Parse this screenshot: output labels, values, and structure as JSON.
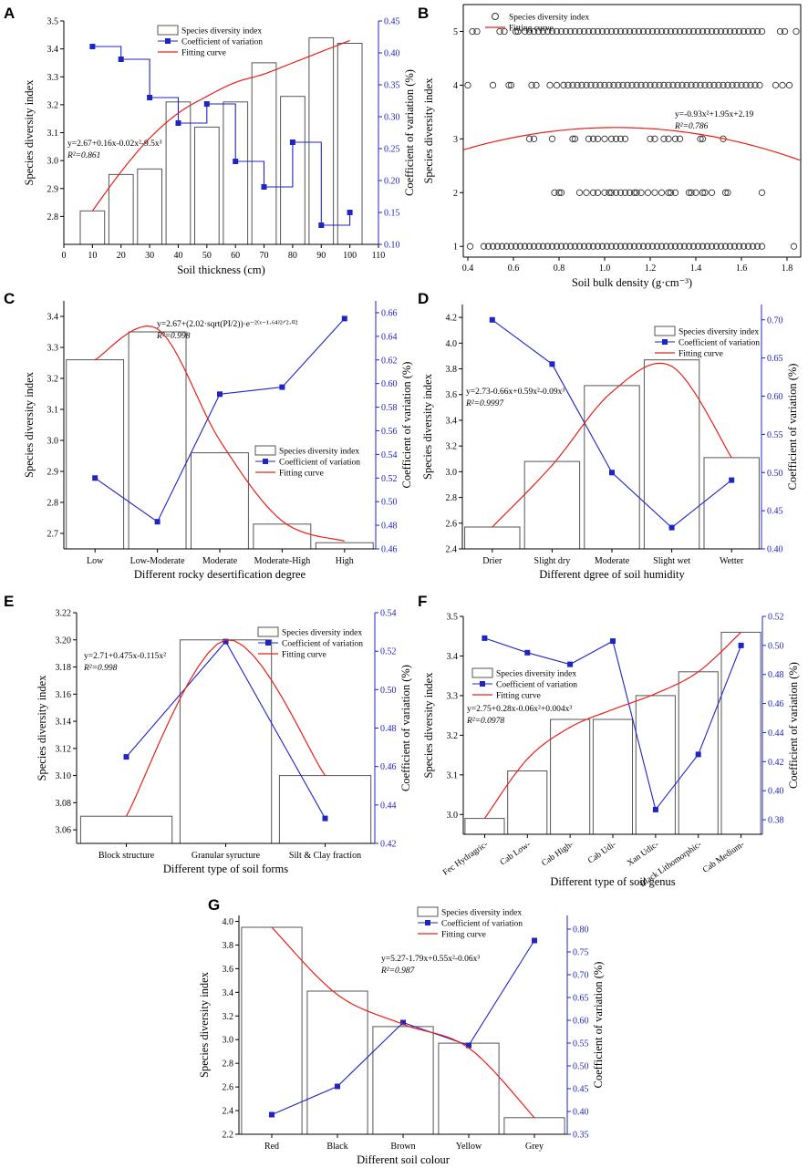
{
  "chart_data": [
    {
      "panel": "A",
      "type": "bar",
      "xlabel": "Soil thickness (cm)",
      "ylabel": "Species diversity index",
      "y2label": "Coefficient of variation (%)",
      "legend": [
        "Species diversity index",
        "Coefficient of variation",
        "Fitting curve"
      ],
      "xlim": [
        0,
        110
      ],
      "ylim": [
        2.7,
        3.5
      ],
      "y2lim": [
        0.1,
        0.45
      ],
      "xticks": [
        "0",
        "10",
        "20",
        "30",
        "40",
        "50",
        "60",
        "70",
        "80",
        "90",
        "100",
        "110"
      ],
      "yticks": [
        "2.8",
        "2.9",
        "3.0",
        "3.1",
        "3.2",
        "3.3",
        "3.4",
        "3.5"
      ],
      "y2ticks": [
        "0.10",
        "0.15",
        "0.20",
        "0.25",
        "0.30",
        "0.35",
        "0.40",
        "0.45"
      ],
      "x": [
        10,
        20,
        30,
        40,
        50,
        60,
        70,
        80,
        90,
        100
      ],
      "bars": [
        2.82,
        2.95,
        2.97,
        3.21,
        3.12,
        3.21,
        3.35,
        3.23,
        3.44,
        3.42
      ],
      "cv": [
        0.41,
        0.39,
        0.33,
        0.29,
        0.32,
        0.23,
        0.19,
        0.26,
        0.13,
        0.15
      ],
      "fit": [
        2.82,
        2.96,
        3.08,
        3.17,
        3.23,
        3.28,
        3.31,
        3.35,
        3.39,
        3.43
      ],
      "equation": "y=2.67+0.16x-0.02x²-9.5x³",
      "r2": "R²=0.861"
    },
    {
      "panel": "B",
      "type": "scatter",
      "xlabel": "Soil bulk density (g·cm⁻³)",
      "ylabel": "Species diversity index",
      "legend": [
        "Species diversity index",
        "Fitting curve"
      ],
      "xlim": [
        0.38,
        1.86
      ],
      "ylim": [
        0.8,
        5.5
      ],
      "xticks": [
        "0.4",
        "0.6",
        "0.8",
        "1.0",
        "1.2",
        "1.4",
        "1.6",
        "1.8"
      ],
      "yticks": [
        "1",
        "2",
        "3",
        "4",
        "5"
      ],
      "series": [
        {
          "y": 5,
          "x": [
            0.42,
            0.44,
            0.54,
            0.56,
            0.61,
            0.62,
            0.65,
            0.67,
            0.69,
            0.71,
            0.73,
            0.75,
            0.77,
            0.79,
            0.81,
            0.83,
            0.85,
            0.87,
            0.89,
            0.91,
            0.93,
            0.95,
            0.97,
            0.99,
            1.01,
            1.03,
            1.05,
            1.07,
            1.09,
            1.11,
            1.13,
            1.15,
            1.17,
            1.19,
            1.21,
            1.23,
            1.25,
            1.27,
            1.29,
            1.31,
            1.33,
            1.35,
            1.37,
            1.39,
            1.41,
            1.43,
            1.45,
            1.47,
            1.49,
            1.51,
            1.53,
            1.55,
            1.57,
            1.59,
            1.61,
            1.63,
            1.65,
            1.67,
            1.69,
            1.77,
            1.79,
            1.84
          ]
        },
        {
          "y": 4,
          "x": [
            0.4,
            0.51,
            0.58,
            0.59,
            0.68,
            0.7,
            0.76,
            0.79,
            0.82,
            0.84,
            0.86,
            0.88,
            0.9,
            0.92,
            0.94,
            0.96,
            0.98,
            1.0,
            1.02,
            1.04,
            1.06,
            1.08,
            1.1,
            1.12,
            1.14,
            1.16,
            1.18,
            1.2,
            1.22,
            1.24,
            1.26,
            1.28,
            1.3,
            1.32,
            1.34,
            1.36,
            1.38,
            1.4,
            1.42,
            1.44,
            1.46,
            1.48,
            1.5,
            1.52,
            1.54,
            1.56,
            1.58,
            1.6,
            1.62,
            1.64,
            1.66,
            1.68,
            1.75,
            1.78,
            1.81
          ]
        },
        {
          "y": 3,
          "x": [
            0.67,
            0.69,
            0.77,
            0.86,
            0.87,
            0.93,
            0.95,
            0.97,
            1.0,
            1.03,
            1.05,
            1.07,
            1.09,
            1.2,
            1.22,
            1.26,
            1.28,
            1.31,
            1.33,
            1.42,
            1.43,
            1.52
          ]
        },
        {
          "y": 2,
          "x": [
            0.78,
            0.8,
            0.81,
            0.89,
            0.92,
            0.95,
            0.97,
            1.0,
            1.02,
            1.03,
            1.05,
            1.07,
            1.09,
            1.11,
            1.13,
            1.14,
            1.16,
            1.19,
            1.22,
            1.25,
            1.28,
            1.29,
            1.31,
            1.37,
            1.38,
            1.4,
            1.43,
            1.44,
            1.47,
            1.53,
            1.54,
            1.69
          ]
        },
        {
          "y": 1,
          "x": [
            0.41,
            0.47,
            0.49,
            0.51,
            0.53,
            0.55,
            0.57,
            0.59,
            0.61,
            0.63,
            0.65,
            0.67,
            0.69,
            0.71,
            0.73,
            0.75,
            0.77,
            0.79,
            0.81,
            0.83,
            0.85,
            0.87,
            0.89,
            0.91,
            0.93,
            0.95,
            0.97,
            0.99,
            1.01,
            1.03,
            1.05,
            1.07,
            1.09,
            1.11,
            1.13,
            1.15,
            1.17,
            1.19,
            1.21,
            1.23,
            1.25,
            1.27,
            1.29,
            1.31,
            1.33,
            1.35,
            1.37,
            1.39,
            1.41,
            1.43,
            1.45,
            1.47,
            1.49,
            1.51,
            1.53,
            1.55,
            1.57,
            1.59,
            1.61,
            1.63,
            1.65,
            1.67,
            1.69,
            1.83
          ]
        }
      ],
      "fit_coef": [
        -0.93,
        1.95,
        2.19
      ],
      "equation": "y=-0.93x²+1.95x+2.19",
      "r2": "R²=0.786"
    },
    {
      "panel": "C",
      "type": "bar",
      "xlabel": "Different rocky desertification degree",
      "ylabel": "Species diversity index",
      "y2label": "Coefficient of variation (%)",
      "legend": [
        "Species diversity index",
        "Coefficient of variation",
        "Fitting curve"
      ],
      "categories": [
        "Low",
        "Low-Moderate",
        "Moderate",
        "Moderate-High",
        "High"
      ],
      "ylim": [
        2.65,
        3.45
      ],
      "y2lim": [
        0.46,
        0.67
      ],
      "yticks": [
        "2.7",
        "2.8",
        "2.9",
        "3.0",
        "3.1",
        "3.2",
        "3.3",
        "3.4"
      ],
      "y2ticks": [
        "0.46",
        "0.48",
        "0.50",
        "0.52",
        "0.54",
        "0.56",
        "0.58",
        "0.60",
        "0.62",
        "0.64",
        "0.66"
      ],
      "bars": [
        3.26,
        3.35,
        2.96,
        2.73,
        2.67
      ],
      "cv": [
        0.52,
        0.483,
        0.591,
        0.597,
        0.655
      ],
      "fit": [
        3.26,
        3.36,
        3.0,
        2.74,
        2.675
      ],
      "equation": "y=2.67+(2.02·sqrt(PI/2))·e⁻²⁽ˣ⁻¹·⁶⁴⁾²ᐟ²·⁰²",
      "r2": "R²=0.998"
    },
    {
      "panel": "D",
      "type": "bar",
      "xlabel": "Different dgree of soil humidity",
      "ylabel": "Species diversity index",
      "y2label": "Coefficient of variation (%)",
      "legend": [
        "Species diversity index",
        "Coefficient of variation",
        "Fitting curve"
      ],
      "categories": [
        "Drier",
        "Slight dry",
        "Moderate",
        "Slight wet",
        "Wetter"
      ],
      "ylim": [
        2.4,
        4.3
      ],
      "y2lim": [
        0.4,
        0.72
      ],
      "yticks": [
        "2.4",
        "2.6",
        "2.8",
        "3.0",
        "3.2",
        "3.4",
        "3.6",
        "3.8",
        "4.0",
        "4.2"
      ],
      "y2ticks": [
        "0.40",
        "0.45",
        "0.50",
        "0.55",
        "0.60",
        "0.65",
        "0.70"
      ],
      "bars": [
        2.57,
        3.08,
        3.67,
        3.87,
        3.11
      ],
      "cv": [
        0.7,
        0.642,
        0.5,
        0.428,
        0.49
      ],
      "fit": [
        2.57,
        3.05,
        3.62,
        3.82,
        3.11
      ],
      "equation": "y=2.73-0.66x+0.59x²-0.09x³",
      "r2": "R²=0.9997"
    },
    {
      "panel": "E",
      "type": "bar",
      "xlabel": "Different type of soil forms",
      "ylabel": "Species diversity index",
      "y2label": "Coefficient of variation (%)",
      "legend": [
        "Species diversity index",
        "Coefficient of variation",
        "Fitting curve"
      ],
      "categories": [
        "Block structure",
        "Granular syructure",
        "Silt & Clay fraction"
      ],
      "ylim": [
        3.05,
        3.22
      ],
      "y2lim": [
        0.42,
        0.54
      ],
      "yticks": [
        "3.06",
        "3.08",
        "3.10",
        "3.12",
        "3.14",
        "3.16",
        "3.18",
        "3.20",
        "3.22"
      ],
      "y2ticks": [
        "0.42",
        "0.44",
        "0.46",
        "0.48",
        "0.50",
        "0.52",
        "0.54"
      ],
      "bars": [
        3.07,
        3.2,
        3.1
      ],
      "cv": [
        0.465,
        0.525,
        0.433
      ],
      "fit": [
        3.07,
        3.2,
        3.1
      ],
      "equation": "y=2.71+0.475x-0.115x²",
      "r2": "R²=0.998"
    },
    {
      "panel": "F",
      "type": "bar",
      "xlabel": "Different type of soil genus",
      "ylabel": "Species diversity index",
      "y2label": "Coefficient of variation (%)",
      "legend": [
        "Species diversity index",
        "Coefficient of variation",
        "Fitting curve"
      ],
      "categories": [
        "Fec Hydragric-",
        "Cab Low-",
        "Cab High-",
        "Cab Udi-",
        "Xan Udic-",
        "Black Lithomorphic-",
        "Cab Medium-"
      ],
      "ylim": [
        2.95,
        3.5
      ],
      "y2lim": [
        0.37,
        0.52
      ],
      "yticks": [
        "3.0",
        "3.1",
        "3.2",
        "3.3",
        "3.4",
        "3.5"
      ],
      "y2ticks": [
        "0.38",
        "0.40",
        "0.42",
        "0.44",
        "0.46",
        "0.48",
        "0.50",
        "0.52"
      ],
      "bars": [
        2.99,
        3.11,
        3.24,
        3.24,
        3.3,
        3.36,
        3.46
      ],
      "cv": [
        0.505,
        0.495,
        0.487,
        0.503,
        0.387,
        0.425,
        0.5
      ],
      "fit": [
        2.99,
        3.14,
        3.22,
        3.265,
        3.305,
        3.36,
        3.46
      ],
      "equation": "y=2.75+0.28x-0.06x²+0.004x³",
      "r2": "R²=0.0978"
    },
    {
      "panel": "G",
      "type": "bar",
      "xlabel": "Different soil colour",
      "ylabel": "Species diversity index",
      "y2label": "Coefficient of variation (%)",
      "legend": [
        "Species diversity index",
        "Coefficient of variation",
        "Fitting curve"
      ],
      "categories": [
        "Red",
        "Black",
        "Brown",
        "Yellow",
        "Grey"
      ],
      "ylim": [
        2.2,
        4.05
      ],
      "y2lim": [
        0.35,
        0.83
      ],
      "yticks": [
        "2.2",
        "2.4",
        "2.6",
        "2.8",
        "3.0",
        "3.2",
        "3.4",
        "3.6",
        "3.8",
        "4.0"
      ],
      "y2ticks": [
        "0.35",
        "0.40",
        "0.45",
        "0.50",
        "0.55",
        "0.60",
        "0.65",
        "0.70",
        "0.75",
        "0.80"
      ],
      "bars": [
        3.95,
        3.41,
        3.11,
        2.97,
        2.34
      ],
      "cv": [
        0.393,
        0.455,
        0.595,
        0.545,
        0.775
      ],
      "fit": [
        3.95,
        3.38,
        3.13,
        2.93,
        2.34
      ],
      "equation": "y=5.27-1.79x+0.55x²-0.06x³",
      "r2": "R²=0.987"
    }
  ],
  "style": {
    "cv_color": "#1f24c4",
    "fit_color": "#e8201a",
    "bar_edge": "#555555",
    "axis_color": "#000000"
  }
}
